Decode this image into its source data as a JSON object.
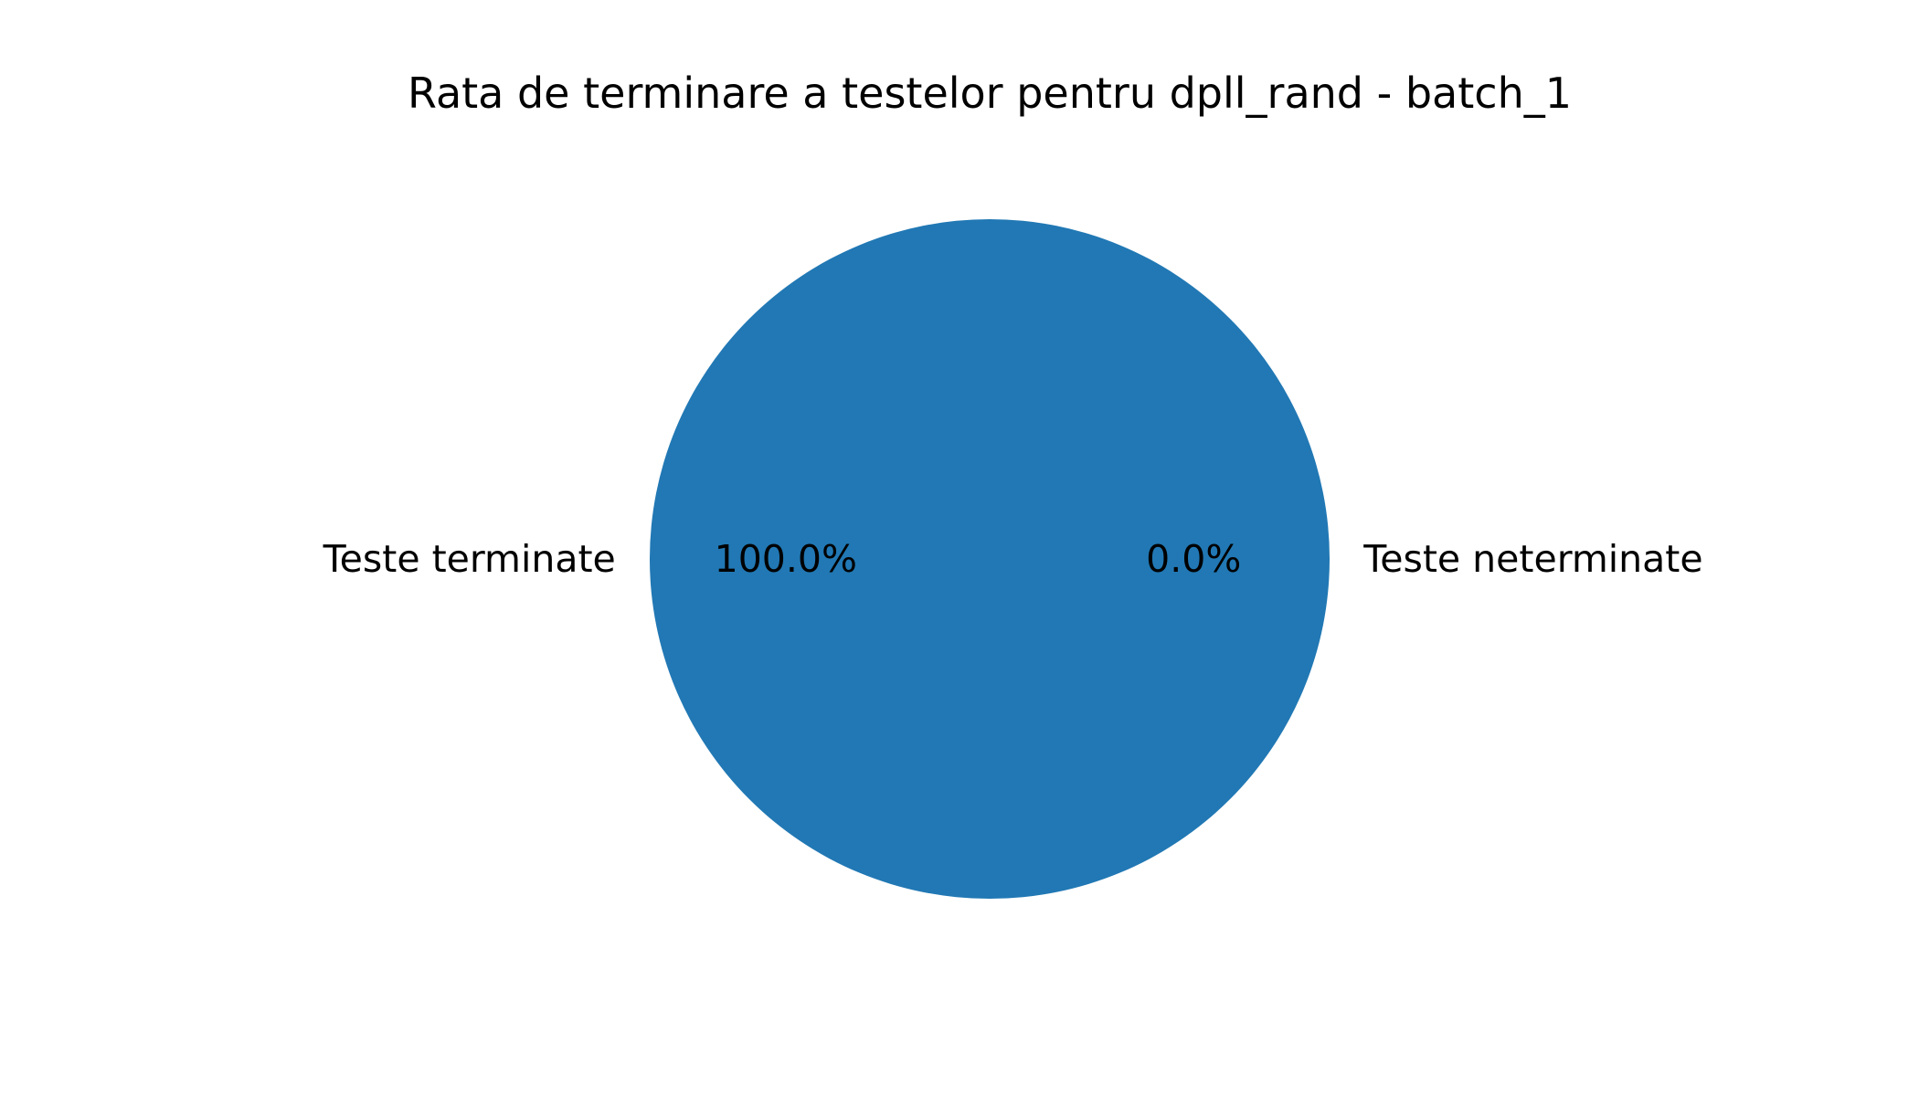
{
  "chart_data": {
    "type": "pie",
    "title": "Rata de terminare a testelor pentru dpll_rand - batch_1",
    "labels": [
      "Teste terminate",
      "Teste neterminate"
    ],
    "values": [
      100.0,
      0.0
    ],
    "percent_labels": [
      "100.0%",
      "0.0%"
    ],
    "colors": [
      "#2178b4",
      "#ff7f0e"
    ],
    "start_angle_deg": 0,
    "direction": "counterclockwise"
  }
}
